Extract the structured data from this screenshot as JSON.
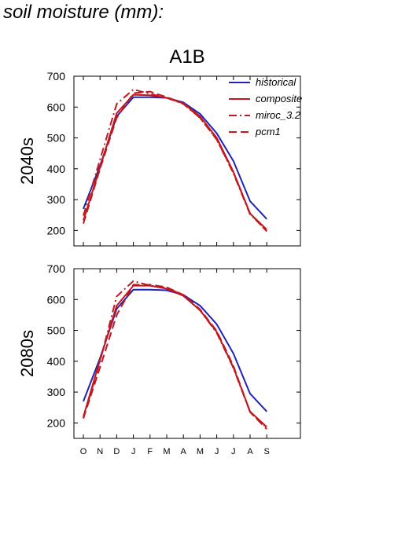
{
  "page": {
    "title": "soil moisture (mm):"
  },
  "chart_data": [
    {
      "type": "line",
      "title": "A1B",
      "ylabel": "2040s",
      "xlabel": "",
      "categories": [
        "O",
        "N",
        "D",
        "J",
        "F",
        "M",
        "A",
        "M",
        "J",
        "J",
        "A",
        "S"
      ],
      "ylim": [
        150,
        700
      ],
      "yticks": [
        200,
        300,
        400,
        500,
        600,
        700
      ],
      "legend": {
        "placement": "top-right",
        "entries": [
          "historical",
          "composite",
          "miroc_3.2",
          "pcm1"
        ]
      },
      "series": [
        {
          "name": "historical",
          "color": "#1f24b4",
          "dash": "solid",
          "values": [
            270,
            410,
            570,
            632,
            632,
            630,
            615,
            578,
            515,
            425,
            295,
            237
          ]
        },
        {
          "name": "composite",
          "color": "#c0181e",
          "dash": "solid",
          "values": [
            232,
            405,
            580,
            640,
            638,
            630,
            612,
            570,
            500,
            390,
            255,
            203
          ]
        },
        {
          "name": "miroc_3.2",
          "color": "#c0181e",
          "dash": "dashdot",
          "values": [
            248,
            430,
            610,
            657,
            643,
            630,
            610,
            565,
            495,
            385,
            252,
            200
          ]
        },
        {
          "name": "pcm1",
          "color": "#c0181e",
          "dash": "dashed",
          "values": [
            222,
            400,
            565,
            645,
            650,
            632,
            612,
            565,
            495,
            388,
            255,
            197
          ]
        }
      ]
    },
    {
      "type": "line",
      "title": "",
      "ylabel": "2080s",
      "xlabel": "",
      "categories": [
        "O",
        "N",
        "D",
        "J",
        "F",
        "M",
        "A",
        "M",
        "J",
        "J",
        "A",
        "S"
      ],
      "ylim": [
        150,
        700
      ],
      "yticks": [
        200,
        300,
        400,
        500,
        600,
        700
      ],
      "series": [
        {
          "name": "historical",
          "color": "#1f24b4",
          "dash": "solid",
          "values": [
            270,
            410,
            570,
            632,
            632,
            630,
            615,
            580,
            520,
            425,
            295,
            237
          ]
        },
        {
          "name": "composite",
          "color": "#c0181e",
          "dash": "solid",
          "values": [
            220,
            405,
            580,
            645,
            645,
            635,
            612,
            565,
            495,
            380,
            237,
            187
          ]
        },
        {
          "name": "miroc_3.2",
          "color": "#c0181e",
          "dash": "dashdot",
          "values": [
            215,
            400,
            610,
            660,
            645,
            638,
            614,
            565,
            492,
            378,
            235,
            185
          ]
        },
        {
          "name": "pcm1",
          "color": "#c0181e",
          "dash": "dashed",
          "values": [
            215,
            380,
            550,
            648,
            648,
            640,
            615,
            568,
            498,
            385,
            235,
            180
          ]
        }
      ]
    }
  ]
}
